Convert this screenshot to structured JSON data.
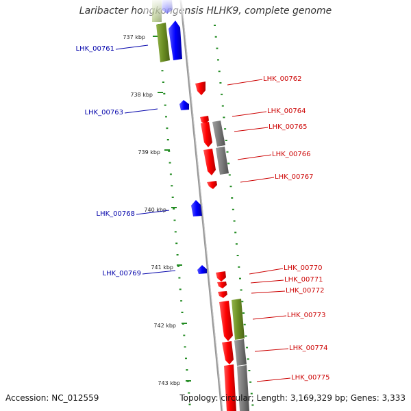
{
  "title": "Laribacter hongkongensis HLHK9, complete genome",
  "accession": "Accession: NC_012559",
  "topology": "Topology: circular; Length: 3,169,329 bp; Genes: 3,333",
  "colors": {
    "forward_gene": "#ff0000",
    "reverse_gene": "#0000ff",
    "cog_green": "#6b8e23",
    "cog_gray": "#777777",
    "tick": "#228b22",
    "backbone": "#888888"
  },
  "kbp_labels": [
    "737 kbp",
    "738 kbp",
    "739 kbp",
    "740 kbp",
    "741 kbp",
    "742 kbp",
    "743 kbp"
  ],
  "gene_labels_reverse": [
    "LHK_00761",
    "LHK_00763",
    "LHK_00768",
    "LHK_00769"
  ],
  "gene_labels_forward": [
    "LHK_00762",
    "LHK_00764",
    "LHK_00765",
    "LHK_00766",
    "LHK_00767",
    "LHK_00770",
    "LHK_00771",
    "LHK_00772",
    "LHK_00773",
    "LHK_00774",
    "LHK_00775"
  ]
}
